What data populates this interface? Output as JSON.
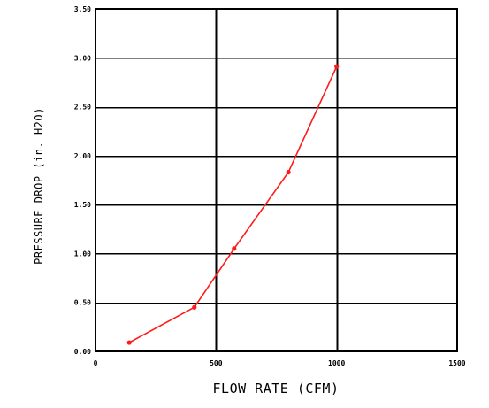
{
  "chart_data": {
    "type": "line",
    "title": "",
    "xlabel": "FLOW RATE (CFM)",
    "ylabel": "PRESSURE DROP (in. H2O)",
    "xlim": [
      0,
      1500
    ],
    "ylim": [
      0,
      3.5
    ],
    "x_ticks": [
      0,
      500,
      1000,
      1500
    ],
    "x_tick_labels": [
      "0",
      "500",
      "1000",
      "1500"
    ],
    "y_ticks": [
      0,
      0.5,
      1.0,
      1.5,
      2.0,
      2.5,
      3.0,
      3.5
    ],
    "y_tick_labels": [
      "0.00",
      "0.50",
      "1.00",
      "1.50",
      "2.00",
      "2.50",
      "3.00",
      "3.50"
    ],
    "grid": true,
    "legend": "none",
    "series": [
      {
        "color": "#ff1a1a",
        "x": [
          140,
          410,
          575,
          800,
          1000
        ],
        "y": [
          0.09,
          0.45,
          1.05,
          1.83,
          2.91
        ]
      }
    ]
  }
}
